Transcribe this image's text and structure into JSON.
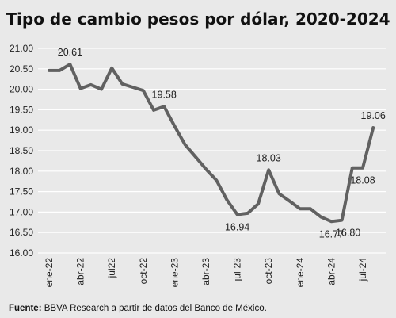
{
  "chart_data": {
    "type": "line",
    "title": "Tipo de cambio pesos por dólar, 2020-2024",
    "xlabel": "",
    "ylabel": "",
    "ylim": [
      16.0,
      21.0
    ],
    "y_ticks": [
      "21.00",
      "20.50",
      "20.00",
      "19.50",
      "19.00",
      "18.50",
      "18.00",
      "17.50",
      "17.00",
      "16.50",
      "16.00"
    ],
    "x_tick_labels": [
      "ene-22",
      "abr-22",
      "jul22",
      "oct-22",
      "ene-23",
      "abr-23",
      "jul-23",
      "oct-23",
      "ene-24",
      "abr-24",
      "jul-24"
    ],
    "grid": true,
    "legend": "none",
    "line_color": "#616161",
    "x": [
      "ene-22",
      "feb-22",
      "mar-22",
      "abr-22",
      "may-22",
      "jun-22",
      "jul-22",
      "ago-22",
      "sep-22",
      "oct-22",
      "nov-22",
      "dic-22",
      "ene-23",
      "feb-23",
      "mar-23",
      "abr-23",
      "may-23",
      "jun-23",
      "jul-23",
      "ago-23",
      "sep-23",
      "oct-23",
      "nov-23",
      "dic-23",
      "ene-24",
      "feb-24",
      "mar-24",
      "abr-24",
      "may-24",
      "jun-24",
      "jul-24",
      "ago-24"
    ],
    "values": [
      20.46,
      20.46,
      20.61,
      20.02,
      20.11,
      20.0,
      20.52,
      20.13,
      20.05,
      19.97,
      19.49,
      19.58,
      19.1,
      18.65,
      18.35,
      18.05,
      17.78,
      17.3,
      16.94,
      16.97,
      17.2,
      18.03,
      17.45,
      17.27,
      17.08,
      17.08,
      16.88,
      16.77,
      16.8,
      18.08,
      18.08,
      19.06
    ],
    "data_labels": [
      {
        "index": 2,
        "text": "20.61",
        "pos": "above"
      },
      {
        "index": 11,
        "text": "19.58",
        "pos": "above"
      },
      {
        "index": 18,
        "text": "16.94",
        "pos": "below"
      },
      {
        "index": 21,
        "text": "18.03",
        "pos": "above"
      },
      {
        "index": 27,
        "text": "16.77",
        "pos": "below"
      },
      {
        "index": 28,
        "text": "16.80",
        "pos": "below-right"
      },
      {
        "index": 30,
        "text": "18.08",
        "pos": "below"
      },
      {
        "index": 31,
        "text": "19.06",
        "pos": "above"
      }
    ]
  },
  "source": {
    "label": "Fuente:",
    "text": " BBVA Research a partir de datos del Banco de México."
  }
}
